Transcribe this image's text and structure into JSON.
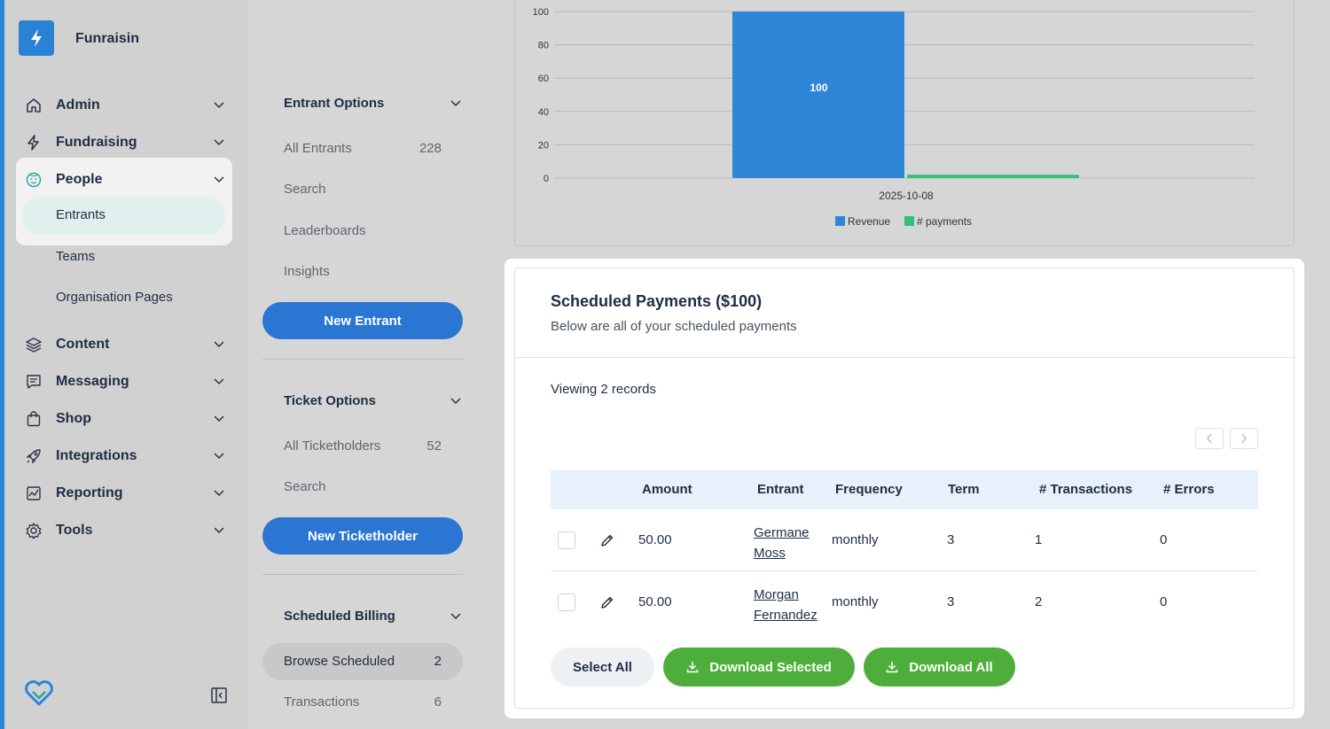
{
  "app": {
    "brand": "Funraisin"
  },
  "colors": {
    "accent": "#2a86d8",
    "primary_button": "#2a76d2",
    "success_button": "#4dae3c",
    "revenue": "#2f86d8",
    "payments": "#2ec27e"
  },
  "sidebar": {
    "items": [
      {
        "label": "Admin",
        "icon": "home-icon"
      },
      {
        "label": "Fundraising",
        "icon": "bolt-icon"
      },
      {
        "label": "People",
        "icon": "face-icon"
      },
      {
        "label": "Content",
        "icon": "layers-icon"
      },
      {
        "label": "Messaging",
        "icon": "message-icon"
      },
      {
        "label": "Shop",
        "icon": "bag-icon"
      },
      {
        "label": "Integrations",
        "icon": "rocket-icon"
      },
      {
        "label": "Reporting",
        "icon": "chart-icon"
      },
      {
        "label": "Tools",
        "icon": "gear-icon"
      }
    ],
    "people_sub": [
      "Entrants",
      "Teams",
      "Organisation Pages"
    ],
    "active_sub": "Entrants"
  },
  "mid": {
    "entrant_options": {
      "title": "Entrant Options",
      "items": [
        {
          "label": "All Entrants",
          "count": "228"
        },
        {
          "label": "Search",
          "count": ""
        },
        {
          "label": "Leaderboards",
          "count": ""
        },
        {
          "label": "Insights",
          "count": ""
        }
      ],
      "button": "New Entrant"
    },
    "ticket_options": {
      "title": "Ticket Options",
      "items": [
        {
          "label": "All Ticketholders",
          "count": "52"
        },
        {
          "label": "Search",
          "count": ""
        }
      ],
      "button": "New Ticketholder"
    },
    "scheduled_billing": {
      "title": "Scheduled Billing",
      "items": [
        {
          "label": "Browse Scheduled",
          "count": "2"
        },
        {
          "label": "Transactions",
          "count": "6"
        }
      ]
    }
  },
  "chart_data": {
    "type": "bar",
    "categories": [
      "2025-10-08"
    ],
    "series": [
      {
        "name": "Revenue",
        "values": [
          100
        ],
        "color": "#2f86d8"
      },
      {
        "name": "# payments",
        "values": [
          2
        ],
        "color": "#2ec27e"
      }
    ],
    "data_labels": [
      "100"
    ],
    "yticks": [
      "100",
      "80",
      "60",
      "40",
      "20",
      "0"
    ],
    "ylim": [
      0,
      100
    ],
    "grid": true,
    "legend": "bottom"
  },
  "payments": {
    "title": "Scheduled Payments ($100)",
    "subtitle": "Below are all of your scheduled payments",
    "viewing": "Viewing 2 records",
    "columns": [
      "Amount",
      "Entrant",
      "Frequency",
      "Term",
      "# Transactions",
      "# Errors"
    ],
    "rows": [
      {
        "amount": "50.00",
        "entrant_first": "Germane",
        "entrant_last": "Moss",
        "frequency": "monthly",
        "term": "3",
        "transactions": "1",
        "errors": "0"
      },
      {
        "amount": "50.00",
        "entrant_first": "Morgan",
        "entrant_last": "Fernandez",
        "frequency": "monthly",
        "term": "3",
        "transactions": "2",
        "errors": "0"
      }
    ],
    "buttons": {
      "select_all": "Select All",
      "download_selected": "Download Selected",
      "download_all": "Download All"
    }
  }
}
